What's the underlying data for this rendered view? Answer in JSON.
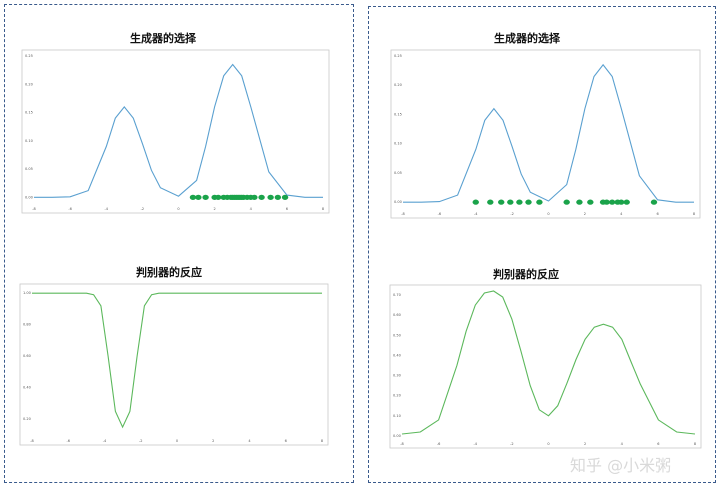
{
  "panels": {
    "left": {
      "top_title": "生成器的选择",
      "bottom_title": "判别器的反应"
    },
    "right": {
      "top_title": "生成器的选择",
      "bottom_title": "判别器的反应"
    }
  },
  "watermark": "知乎 @小米粥",
  "colors": {
    "density_line": "#5aa0d0",
    "discriminator_line": "#5cb85c",
    "samples": "#1aa34a",
    "border": "#3a5a8c"
  },
  "chart_data": [
    {
      "id": "left-top",
      "type": "line",
      "title": "生成器的选择",
      "xlim": [
        -8,
        8
      ],
      "ylim": [
        -0.01,
        0.25
      ],
      "xticks": [
        -8,
        -6,
        -4,
        -2,
        0,
        2,
        4,
        6,
        8
      ],
      "yticks": [
        0.0,
        0.05,
        0.1,
        0.15,
        0.2,
        0.25
      ],
      "series": [
        {
          "x": [
            -8,
            -7,
            -6,
            -5,
            -4,
            -3.5,
            -3,
            -2.5,
            -2,
            -1.5,
            -1,
            0,
            1,
            1.5,
            2,
            2.5,
            3,
            3.5,
            4,
            5,
            6,
            7,
            8
          ],
          "y": [
            0,
            0,
            0.001,
            0.012,
            0.09,
            0.14,
            0.16,
            0.14,
            0.095,
            0.048,
            0.017,
            0.002,
            0.03,
            0.09,
            0.16,
            0.215,
            0.235,
            0.215,
            0.16,
            0.045,
            0.004,
            0,
            0
          ]
        }
      ],
      "points": {
        "x": [
          0.8,
          1.1,
          1.5,
          2.0,
          2.2,
          2.5,
          2.7,
          2.9,
          3.0,
          3.1,
          3.2,
          3.3,
          3.4,
          3.5,
          3.6,
          3.8,
          4.0,
          4.2,
          4.6,
          5.1,
          5.5,
          5.9
        ],
        "y": 0
      }
    },
    {
      "id": "left-bottom",
      "type": "line",
      "title": "判别器的反应",
      "xlim": [
        -8,
        8
      ],
      "ylim": [
        0.1,
        1.02
      ],
      "xticks": [
        -8,
        -6,
        -4,
        -2,
        0,
        2,
        4,
        6,
        8
      ],
      "yticks": [
        0.2,
        0.4,
        0.6,
        0.8,
        1.0
      ],
      "series": [
        {
          "x": [
            -8,
            -6,
            -5,
            -4.6,
            -4.2,
            -3.8,
            -3.4,
            -3.0,
            -2.6,
            -2.2,
            -1.8,
            -1.4,
            -1,
            0,
            2,
            8
          ],
          "y": [
            1.0,
            1.0,
            1.0,
            0.99,
            0.92,
            0.6,
            0.25,
            0.15,
            0.25,
            0.6,
            0.92,
            0.99,
            1.0,
            1.0,
            1.0,
            1.0
          ]
        }
      ]
    },
    {
      "id": "right-top",
      "type": "line",
      "title": "生成器的选择",
      "xlim": [
        -8,
        8
      ],
      "ylim": [
        -0.01,
        0.25
      ],
      "xticks": [
        -8,
        -6,
        -4,
        -2,
        0,
        2,
        4,
        6,
        8
      ],
      "yticks": [
        0.0,
        0.05,
        0.1,
        0.15,
        0.2,
        0.25
      ],
      "series": [
        {
          "x": [
            -8,
            -7,
            -6,
            -5,
            -4,
            -3.5,
            -3,
            -2.5,
            -2,
            -1.5,
            -1,
            0,
            1,
            1.5,
            2,
            2.5,
            3,
            3.5,
            4,
            5,
            6,
            7,
            8
          ],
          "y": [
            0,
            0,
            0.001,
            0.012,
            0.09,
            0.14,
            0.16,
            0.14,
            0.095,
            0.048,
            0.017,
            0.002,
            0.03,
            0.09,
            0.16,
            0.215,
            0.235,
            0.215,
            0.16,
            0.045,
            0.004,
            0,
            0
          ]
        }
      ],
      "points": {
        "x": [
          -4.0,
          -3.2,
          -2.6,
          -2.1,
          -1.6,
          -1.1,
          -0.5,
          1.0,
          1.7,
          2.3,
          3.0,
          3.2,
          3.5,
          3.8,
          4.0,
          4.3,
          5.8
        ],
        "y": 0
      }
    },
    {
      "id": "right-bottom",
      "type": "line",
      "title": "判别器的反应",
      "xlim": [
        -8,
        8
      ],
      "ylim": [
        -0.01,
        0.72
      ],
      "xticks": [
        -8,
        -6,
        -4,
        -2,
        0,
        2,
        4,
        6,
        8
      ],
      "yticks": [
        0.0,
        0.1,
        0.2,
        0.3,
        0.4,
        0.5,
        0.6,
        0.7
      ],
      "series": [
        {
          "x": [
            -8,
            -7,
            -6,
            -5,
            -4.5,
            -4,
            -3.5,
            -3,
            -2.5,
            -2,
            -1.5,
            -1,
            -0.5,
            0,
            0.5,
            1,
            1.5,
            2,
            2.5,
            3,
            3.5,
            4,
            4.5,
            5,
            6,
            7,
            8
          ],
          "y": [
            0.01,
            0.02,
            0.08,
            0.35,
            0.52,
            0.65,
            0.71,
            0.72,
            0.69,
            0.58,
            0.42,
            0.25,
            0.13,
            0.1,
            0.15,
            0.26,
            0.38,
            0.48,
            0.54,
            0.555,
            0.54,
            0.48,
            0.37,
            0.26,
            0.08,
            0.02,
            0.01
          ]
        }
      ]
    }
  ]
}
